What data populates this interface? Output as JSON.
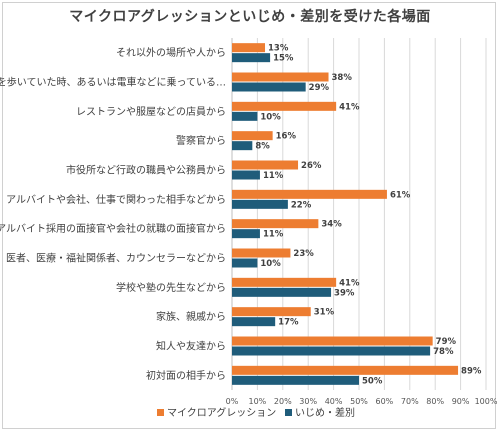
{
  "chart_data": {
    "type": "bar",
    "orientation": "horizontal",
    "title": "マイクロアグレッションといじめ・差別を受けた各場面",
    "categories": [
      "それ以外の場所や人から",
      "道を歩いていた時、あるいは電車などに乗っている…",
      "レストランや服屋などの店員から",
      "警察官から",
      "市役所など行政の職員や公務員から",
      "アルバイトや会社、仕事で関わった相手などから",
      "アルバイト採用の面接官や会社の就職の面接官から",
      "医者、医療・福祉関係者、カウンセラーなどから",
      "学校や塾の先生などから",
      "家族、親戚から",
      "知人や友達から",
      "初対面の相手から"
    ],
    "series": [
      {
        "name": "マイクロアグレッション",
        "color": "#ED7D31",
        "values": [
          13,
          38,
          41,
          16,
          26,
          61,
          34,
          23,
          41,
          31,
          79,
          89
        ]
      },
      {
        "name": "いじめ・差別",
        "color": "#1F5C7A",
        "values": [
          15,
          29,
          10,
          8,
          11,
          22,
          11,
          10,
          39,
          17,
          78,
          50
        ]
      }
    ],
    "xlim": [
      0,
      100
    ],
    "xticks": [
      "0%",
      "10%",
      "20%",
      "30%",
      "40%",
      "50%",
      "60%",
      "70%",
      "80%",
      "90%",
      "100%"
    ],
    "value_suffix": "%",
    "grid": true,
    "legend_position": "bottom"
  }
}
